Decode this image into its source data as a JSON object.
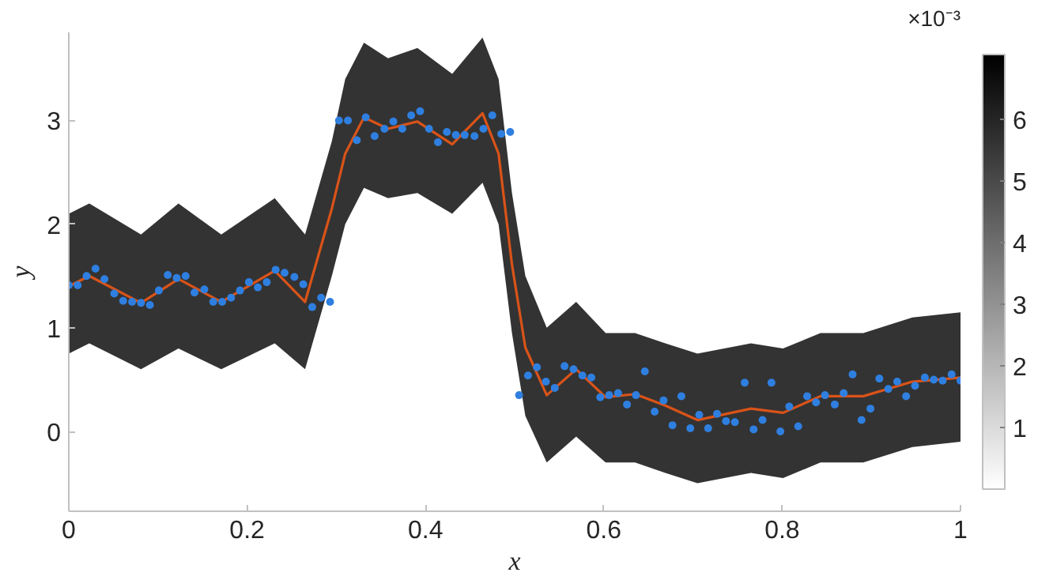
{
  "chart_data": {
    "type": "line",
    "xlabel": "x",
    "ylabel": "y",
    "xlim": [
      0,
      1
    ],
    "ylim": [
      -0.77,
      3.85
    ],
    "xticks": [
      0,
      0.2,
      0.4,
      0.6,
      0.8,
      1
    ],
    "yticks": [
      0,
      1,
      2,
      3
    ],
    "clim": [
      0,
      7.05
    ],
    "clabel": "×10⁻³",
    "cticks": [
      1,
      2,
      3,
      4,
      5,
      6
    ],
    "series": [
      {
        "color": "#d95319",
        "x": [
          0,
          0.023,
          0.081,
          0.123,
          0.171,
          0.231,
          0.265,
          0.295,
          0.31,
          0.331,
          0.358,
          0.391,
          0.43,
          0.464,
          0.482,
          0.497,
          0.512,
          0.536,
          0.569,
          0.602,
          0.635,
          0.669,
          0.705,
          0.765,
          0.801,
          0.843,
          0.891,
          0.946,
          1.0
        ],
        "values": [
          1.4,
          1.5,
          1.24,
          1.47,
          1.25,
          1.55,
          1.25,
          2.15,
          2.68,
          3.03,
          2.92,
          2.99,
          2.77,
          3.07,
          2.68,
          1.61,
          0.81,
          0.35,
          0.6,
          0.33,
          0.36,
          0.25,
          0.11,
          0.22,
          0.18,
          0.34,
          0.34,
          0.48,
          0.52
        ],
        "lower": [
          0.75,
          0.85,
          0.6,
          0.8,
          0.6,
          0.85,
          0.6,
          1.5,
          2.0,
          2.35,
          2.25,
          2.3,
          2.1,
          2.4,
          2.0,
          0.95,
          0.15,
          -0.3,
          -0.05,
          -0.3,
          -0.3,
          -0.4,
          -0.5,
          -0.4,
          -0.45,
          -0.3,
          -0.3,
          -0.15,
          -0.1
        ],
        "upper": [
          2.1,
          2.2,
          1.9,
          2.2,
          1.9,
          2.25,
          1.9,
          2.8,
          3.4,
          3.75,
          3.6,
          3.7,
          3.45,
          3.8,
          3.4,
          2.3,
          1.5,
          1.0,
          1.25,
          0.95,
          0.95,
          0.85,
          0.75,
          0.85,
          0.8,
          0.95,
          0.95,
          1.1,
          1.15
        ]
      },
      {
        "type": "scatter",
        "color": "#2f7fe0",
        "marker": "circle",
        "x": [
          0,
          0.01,
          0.02,
          0.03,
          0.04,
          0.051,
          0.061,
          0.071,
          0.081,
          0.091,
          0.101,
          0.111,
          0.121,
          0.131,
          0.141,
          0.152,
          0.162,
          0.172,
          0.182,
          0.192,
          0.202,
          0.212,
          0.222,
          0.232,
          0.242,
          0.253,
          0.263,
          0.273,
          0.283,
          0.293,
          0.303,
          0.313,
          0.323,
          0.333,
          0.343,
          0.354,
          0.364,
          0.374,
          0.384,
          0.394,
          0.404,
          0.414,
          0.424,
          0.434,
          0.444,
          0.455,
          0.465,
          0.475,
          0.485,
          0.495,
          0.505,
          0.515,
          0.525,
          0.535,
          0.545,
          0.556,
          0.566,
          0.576,
          0.586,
          0.596,
          0.606,
          0.616,
          0.626,
          0.636,
          0.646,
          0.657,
          0.667,
          0.677,
          0.687,
          0.697,
          0.707,
          0.717,
          0.727,
          0.737,
          0.747,
          0.758,
          0.768,
          0.778,
          0.788,
          0.798,
          0.808,
          0.818,
          0.828,
          0.838,
          0.848,
          0.859,
          0.869,
          0.879,
          0.889,
          0.899,
          0.909,
          0.919,
          0.929,
          0.939,
          0.949,
          0.96,
          0.97,
          0.98,
          0.99,
          1.0
        ],
        "values": [
          1.41,
          1.41,
          1.5,
          1.57,
          1.47,
          1.33,
          1.26,
          1.25,
          1.24,
          1.22,
          1.36,
          1.51,
          1.48,
          1.5,
          1.34,
          1.37,
          1.25,
          1.25,
          1.29,
          1.36,
          1.44,
          1.39,
          1.44,
          1.56,
          1.53,
          1.49,
          1.42,
          1.2,
          1.29,
          1.25,
          3.0,
          3.0,
          2.81,
          3.03,
          2.85,
          2.92,
          2.99,
          2.92,
          3.05,
          3.09,
          2.92,
          2.79,
          2.89,
          2.86,
          2.86,
          2.85,
          2.92,
          3.05,
          2.87,
          2.89,
          0.35,
          0.54,
          0.62,
          0.48,
          0.42,
          0.63,
          0.6,
          0.54,
          0.52,
          0.33,
          0.35,
          0.37,
          0.26,
          0.35,
          0.58,
          0.19,
          0.3,
          0.06,
          0.34,
          0.03,
          0.16,
          0.03,
          0.17,
          0.1,
          0.09,
          0.47,
          0.02,
          0.11,
          0.47,
          0.0,
          0.24,
          0.05,
          0.34,
          0.28,
          0.35,
          0.26,
          0.37,
          0.55,
          0.11,
          0.22,
          0.51,
          0.41,
          0.48,
          0.34,
          0.44,
          0.52,
          0.5,
          0.49,
          0.55,
          0.49
        ]
      }
    ]
  }
}
